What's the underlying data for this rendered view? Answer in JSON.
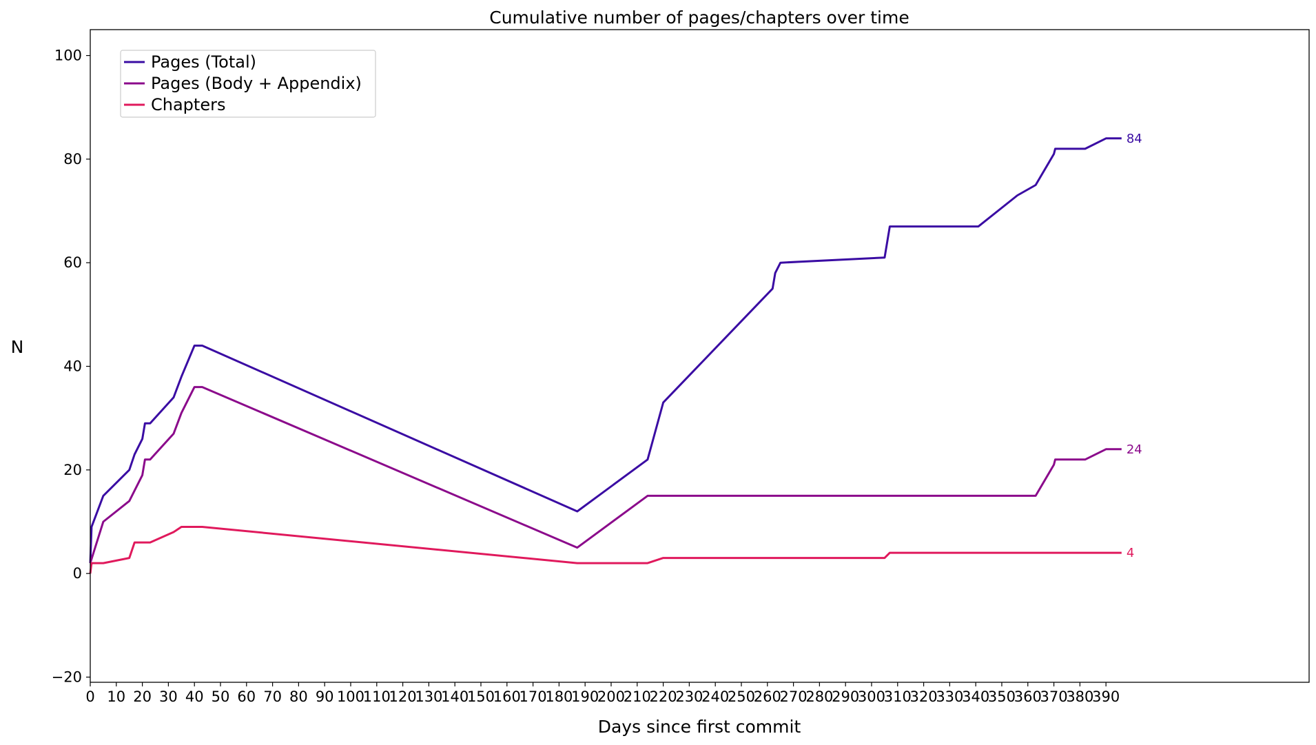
{
  "chart_data": {
    "type": "line",
    "title": "Cumulative number of pages/chapters over time",
    "xlabel": "Days since first commit",
    "ylabel": "N",
    "xlim": [
      0,
      468
    ],
    "ylim": [
      -21,
      105
    ],
    "x_ticks": [
      0,
      10,
      20,
      30,
      40,
      50,
      60,
      70,
      80,
      90,
      100,
      110,
      120,
      130,
      140,
      150,
      160,
      170,
      180,
      190,
      200,
      210,
      220,
      230,
      240,
      250,
      260,
      270,
      280,
      290,
      300,
      310,
      320,
      330,
      340,
      350,
      360,
      370,
      380,
      390
    ],
    "y_ticks": [
      -20,
      0,
      20,
      40,
      60,
      80,
      100
    ],
    "y_tick_labels": [
      "−20",
      "0",
      "20",
      "40",
      "60",
      "80",
      "100"
    ],
    "grid": false,
    "legend_position": "top-left",
    "series": [
      {
        "name": "Pages (Total)",
        "color": "#3a0ca3",
        "end_label": "84",
        "points": [
          [
            0,
            2
          ],
          [
            0.5,
            9
          ],
          [
            5,
            15
          ],
          [
            15,
            20
          ],
          [
            17,
            23
          ],
          [
            20,
            26
          ],
          [
            21,
            29
          ],
          [
            23,
            29
          ],
          [
            32,
            34
          ],
          [
            35,
            38
          ],
          [
            40,
            44
          ],
          [
            43,
            44
          ],
          [
            187,
            12
          ],
          [
            214,
            22
          ],
          [
            220,
            33
          ],
          [
            262,
            55
          ],
          [
            263,
            58
          ],
          [
            265,
            60
          ],
          [
            305,
            61
          ],
          [
            307,
            67
          ],
          [
            341,
            67
          ],
          [
            356,
            73
          ],
          [
            363,
            75
          ],
          [
            370,
            81
          ],
          [
            370.5,
            82
          ],
          [
            382,
            82
          ],
          [
            390,
            84
          ],
          [
            396,
            84
          ]
        ]
      },
      {
        "name": "Pages (Body + Appendix)",
        "color": "#8b0a8b",
        "end_label": "24",
        "points": [
          [
            0,
            2
          ],
          [
            5,
            10
          ],
          [
            15,
            14
          ],
          [
            20,
            19
          ],
          [
            21,
            22
          ],
          [
            23,
            22
          ],
          [
            32,
            27
          ],
          [
            35,
            31
          ],
          [
            40,
            36
          ],
          [
            43,
            36
          ],
          [
            187,
            5
          ],
          [
            214,
            15
          ],
          [
            220,
            15
          ],
          [
            363,
            15
          ],
          [
            370,
            21
          ],
          [
            370.5,
            22
          ],
          [
            382,
            22
          ],
          [
            390,
            24
          ],
          [
            396,
            24
          ]
        ]
      },
      {
        "name": "Chapters",
        "color": "#e0195c",
        "end_label": "4",
        "points": [
          [
            0,
            0
          ],
          [
            0.5,
            2
          ],
          [
            5,
            2
          ],
          [
            15,
            3
          ],
          [
            17,
            6
          ],
          [
            23,
            6
          ],
          [
            32,
            8
          ],
          [
            35,
            9
          ],
          [
            43,
            9
          ],
          [
            187,
            2
          ],
          [
            214,
            2
          ],
          [
            220,
            3
          ],
          [
            305,
            3
          ],
          [
            307,
            4
          ],
          [
            396,
            4
          ]
        ]
      }
    ]
  }
}
